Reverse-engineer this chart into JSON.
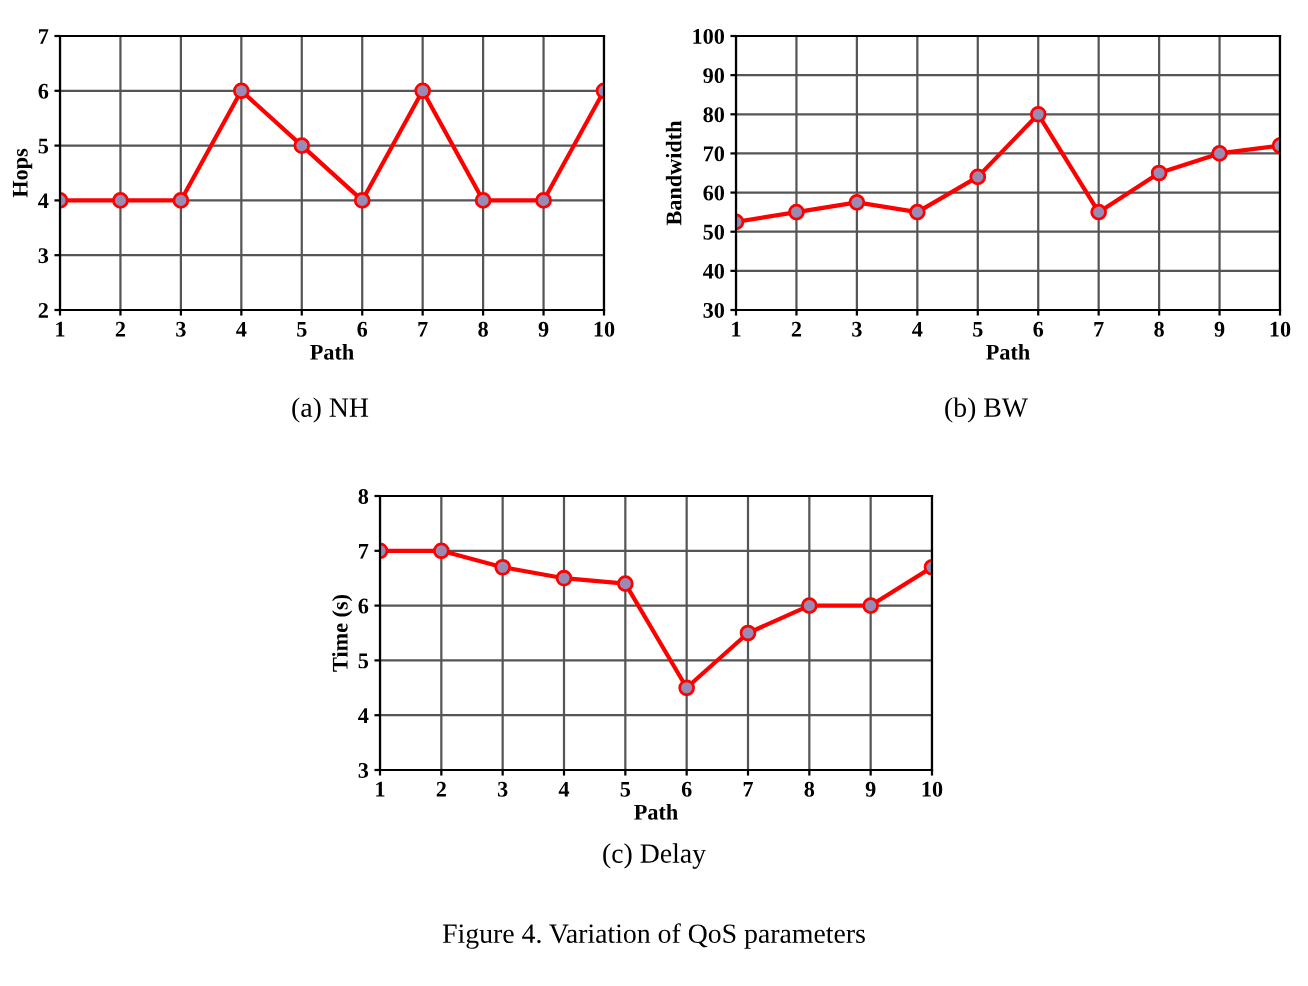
{
  "chart_data": [
    {
      "type": "line",
      "xlabel": "Path",
      "ylabel": "Hops",
      "annotations": [
        "(a) NH"
      ],
      "x": [
        1,
        2,
        3,
        4,
        5,
        6,
        7,
        8,
        9,
        10
      ],
      "xlim": [
        1,
        10
      ],
      "xticks": [
        1,
        2,
        3,
        4,
        5,
        6,
        7,
        8,
        9,
        10
      ],
      "ylim": [
        2,
        7
      ],
      "yticks": [
        2,
        3,
        4,
        5,
        6,
        7
      ],
      "grid": true,
      "marker": "circle",
      "line_style": "solid",
      "series": [
        {
          "color": "#ff0000",
          "values": [
            4,
            4,
            4,
            6,
            5,
            4,
            6,
            4,
            4,
            6
          ]
        }
      ]
    },
    {
      "type": "line",
      "xlabel": "Path",
      "ylabel": "Bandwidth",
      "annotations": [
        "(b) BW"
      ],
      "x": [
        1,
        2,
        3,
        4,
        5,
        6,
        7,
        8,
        9,
        10
      ],
      "xlim": [
        1,
        10
      ],
      "xticks": [
        1,
        2,
        3,
        4,
        5,
        6,
        7,
        8,
        9,
        10
      ],
      "ylim": [
        30,
        100
      ],
      "yticks": [
        30,
        40,
        50,
        60,
        70,
        80,
        90,
        100
      ],
      "grid": true,
      "marker": "circle",
      "line_style": "solid",
      "series": [
        {
          "color": "#ff0000",
          "values": [
            52.5,
            55,
            57.5,
            55,
            64,
            80,
            55,
            65,
            70,
            72
          ]
        }
      ]
    },
    {
      "type": "line",
      "xlabel": "Path",
      "ylabel": "Time (s)",
      "annotations": [
        "(c) Delay",
        "Figure 4. Variation of QoS parameters"
      ],
      "x": [
        1,
        2,
        3,
        4,
        5,
        6,
        7,
        8,
        9,
        10
      ],
      "xlim": [
        1,
        10
      ],
      "xticks": [
        1,
        2,
        3,
        4,
        5,
        6,
        7,
        8,
        9,
        10
      ],
      "ylim": [
        3,
        8
      ],
      "yticks": [
        3,
        4,
        5,
        6,
        7,
        8
      ],
      "grid": true,
      "marker": "circle",
      "line_style": "solid",
      "series": [
        {
          "color": "#ff0000",
          "values": [
            7,
            7,
            6.7,
            6.5,
            6.4,
            4.5,
            5.5,
            6,
            6,
            6.7
          ]
        }
      ]
    }
  ]
}
